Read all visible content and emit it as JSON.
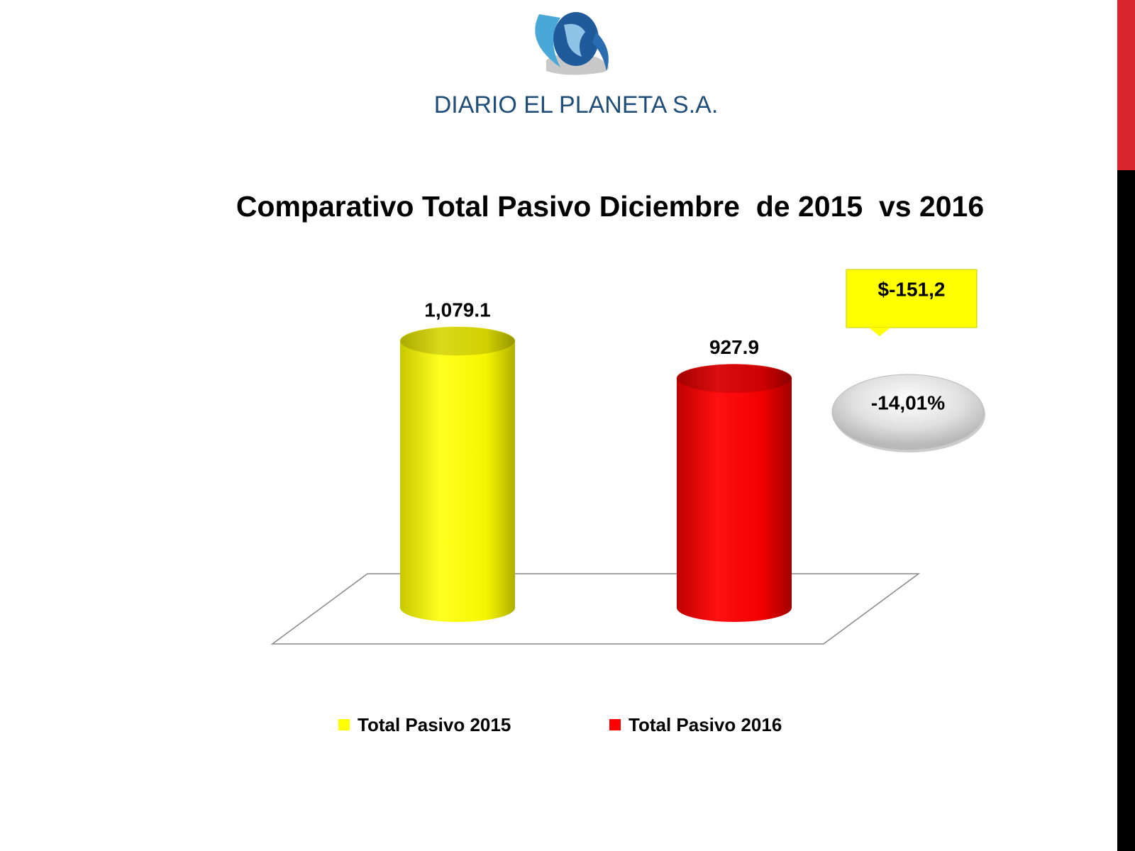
{
  "logo": "DIARIO EL PLANETA S.A.",
  "chart_data": {
    "type": "bar",
    "title": "Comparativo Total Pasivo Diciembre  de 2015  vs 2016",
    "series": [
      {
        "name": "Total Pasivo 2015",
        "color": "#ffff00",
        "values": [
          1079.1
        ],
        "value_labels": [
          "1,079.1"
        ]
      },
      {
        "name": "Total Pasivo 2016",
        "color": "#ff0000",
        "values": [
          927.9
        ]
      }
    ],
    "annotations": [
      "$-151,2",
      "-14,01%"
    ]
  }
}
